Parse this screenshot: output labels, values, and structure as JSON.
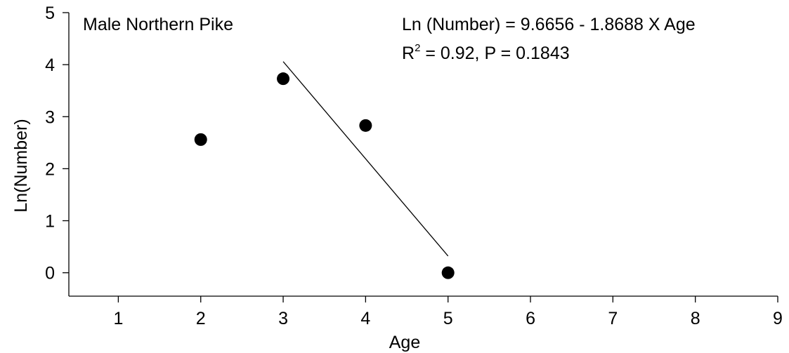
{
  "chart_data": {
    "type": "scatter",
    "title": "",
    "xlabel": "Age",
    "ylabel": "Ln(Number)",
    "xlim": [
      0.4,
      9
    ],
    "ylim": [
      -0.45,
      5
    ],
    "xticks": [
      1,
      2,
      3,
      4,
      5,
      6,
      7,
      8,
      9
    ],
    "yticks": [
      0,
      1,
      2,
      3,
      4,
      5
    ],
    "grid": false,
    "points": [
      {
        "x": 2,
        "y": 2.56
      },
      {
        "x": 3,
        "y": 3.73
      },
      {
        "x": 4,
        "y": 2.83
      },
      {
        "x": 5,
        "y": 0.0
      }
    ],
    "fit_line": {
      "intercept": 9.6656,
      "slope": -1.8688,
      "x_range": [
        3,
        5
      ]
    },
    "annotations": {
      "panel_label": "Male Northern Pike",
      "equation": "Ln (Number) = 9.6656 -  1.8688 X Age",
      "r_prefix": "R",
      "r_superscript": "2",
      "r_suffix": " = 0.92, P = 0.1843"
    }
  }
}
